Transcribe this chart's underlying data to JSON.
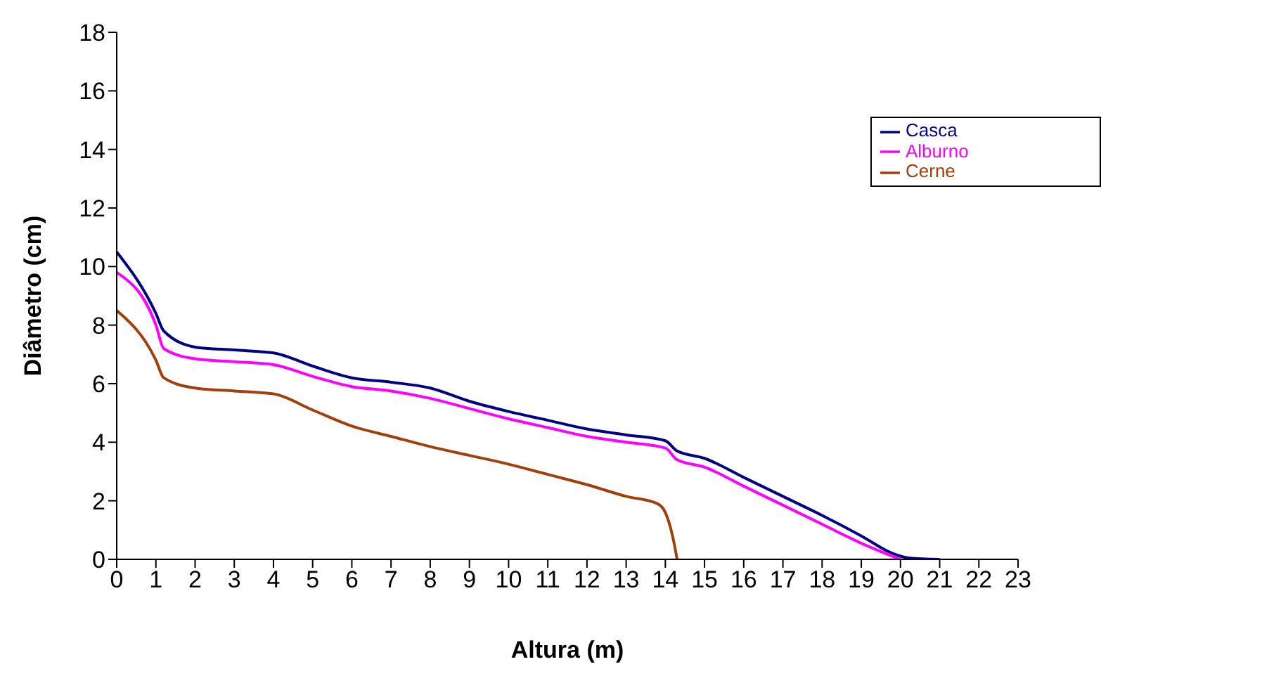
{
  "chart_data": {
    "type": "line",
    "xlabel": "Altura (m)",
    "ylabel": "Diâmetro (cm)",
    "xlim": [
      0,
      23
    ],
    "xticks": [
      0,
      1,
      2,
      3,
      4,
      5,
      6,
      7,
      8,
      9,
      10,
      11,
      12,
      13,
      14,
      15,
      16,
      17,
      18,
      19,
      20,
      21,
      22,
      23
    ],
    "ylim": [
      0,
      18
    ],
    "yticks": [
      0,
      2,
      4,
      6,
      8,
      10,
      12,
      14,
      16,
      18
    ],
    "grid": false,
    "legend": "top right",
    "marker": "none",
    "line_style": "solid",
    "series": [
      {
        "name": "Casca",
        "color": "#000080",
        "x": [
          0,
          1,
          1.2,
          2,
          3,
          4,
          5,
          6,
          7,
          8,
          9,
          10,
          11,
          12,
          13,
          14,
          14.3,
          15,
          16,
          17,
          18,
          19,
          19.8,
          20.2,
          21
        ],
        "values": [
          10.5,
          8.4,
          7.8,
          7.25,
          7.15,
          7.05,
          6.6,
          6.2,
          6.05,
          5.85,
          5.4,
          5.05,
          4.75,
          4.45,
          4.25,
          4.05,
          3.7,
          3.45,
          2.8,
          2.15,
          1.5,
          0.8,
          0.2,
          0.05,
          0
        ]
      },
      {
        "name": "Alburno",
        "color": "#ff00ff",
        "x": [
          0,
          1,
          1.2,
          2,
          3,
          4,
          5,
          6,
          7,
          8,
          9,
          10,
          11,
          12,
          13,
          14,
          14.3,
          15,
          16,
          17,
          18,
          19,
          20
        ],
        "values": [
          9.8,
          8.0,
          7.2,
          6.85,
          6.75,
          6.65,
          6.25,
          5.9,
          5.75,
          5.5,
          5.15,
          4.8,
          4.5,
          4.2,
          4.0,
          3.8,
          3.4,
          3.15,
          2.5,
          1.85,
          1.2,
          0.55,
          0
        ]
      },
      {
        "name": "Cerne",
        "color": "#a0400c",
        "x": [
          0,
          1,
          1.2,
          2,
          3,
          4,
          5,
          6,
          7,
          8,
          9,
          10,
          11,
          12,
          13,
          13.8,
          14,
          14.2,
          14.3
        ],
        "values": [
          8.5,
          6.8,
          6.2,
          5.85,
          5.75,
          5.65,
          5.1,
          4.55,
          4.2,
          3.85,
          3.55,
          3.25,
          2.9,
          2.55,
          2.15,
          1.9,
          1.6,
          0.7,
          0
        ]
      }
    ]
  }
}
